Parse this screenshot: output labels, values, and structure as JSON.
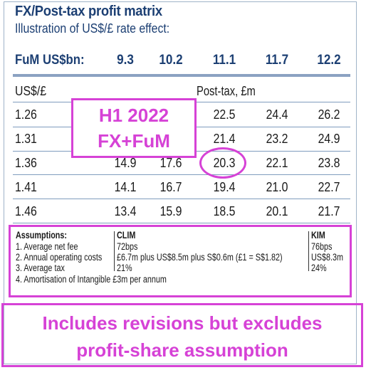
{
  "title": "FX/Post-tax profit matrix",
  "subtitle": "Illustration of US$/£ rate effect:",
  "fum_header": {
    "label": "FuM US$bn:",
    "values": [
      "9.3",
      "10.2",
      "11.1",
      "11.7",
      "12.2"
    ]
  },
  "table": {
    "rate_header": "US$/£",
    "profit_header": "Post-tax, £m",
    "rows": [
      {
        "rate": "1.26",
        "values": [
          "",
          "",
          "22.5",
          "24.4",
          "26.2"
        ]
      },
      {
        "rate": "1.31",
        "values": [
          "",
          "",
          "21.4",
          "23.2",
          "24.9"
        ]
      },
      {
        "rate": "1.36",
        "values": [
          "14.9",
          "17.6",
          "20.3",
          "22.1",
          "23.8"
        ]
      },
      {
        "rate": "1.41",
        "values": [
          "14.1",
          "16.7",
          "19.4",
          "21.0",
          "22.7"
        ]
      },
      {
        "rate": "1.46",
        "values": [
          "13.4",
          "15.9",
          "18.5",
          "20.1",
          "21.7"
        ]
      }
    ]
  },
  "callout": {
    "line1": "H1 2022",
    "line2": "FX+FuM"
  },
  "assumptions": {
    "heading": "Assumptions:",
    "items": [
      "1. Average net fee",
      "2. Annual operating costs",
      "3. Average tax",
      "4. Amortisation of Intangible £3m per annum"
    ],
    "clim_heading": "CLIM",
    "clim_values": [
      "72bps",
      "£6.7m plus US$8.5m plus S$0.6m (£1 = S$1.82)",
      "21%"
    ],
    "kim_heading": "KIM",
    "kim_values": [
      "76bps",
      "US$8.3m",
      "24%"
    ]
  },
  "note": {
    "line1": "Includes revisions but excludes",
    "line2": "profit-share assumption"
  },
  "colors": {
    "navy": "#1c3f73",
    "rule": "#8ba2c2",
    "highlight": "#d642d6"
  }
}
